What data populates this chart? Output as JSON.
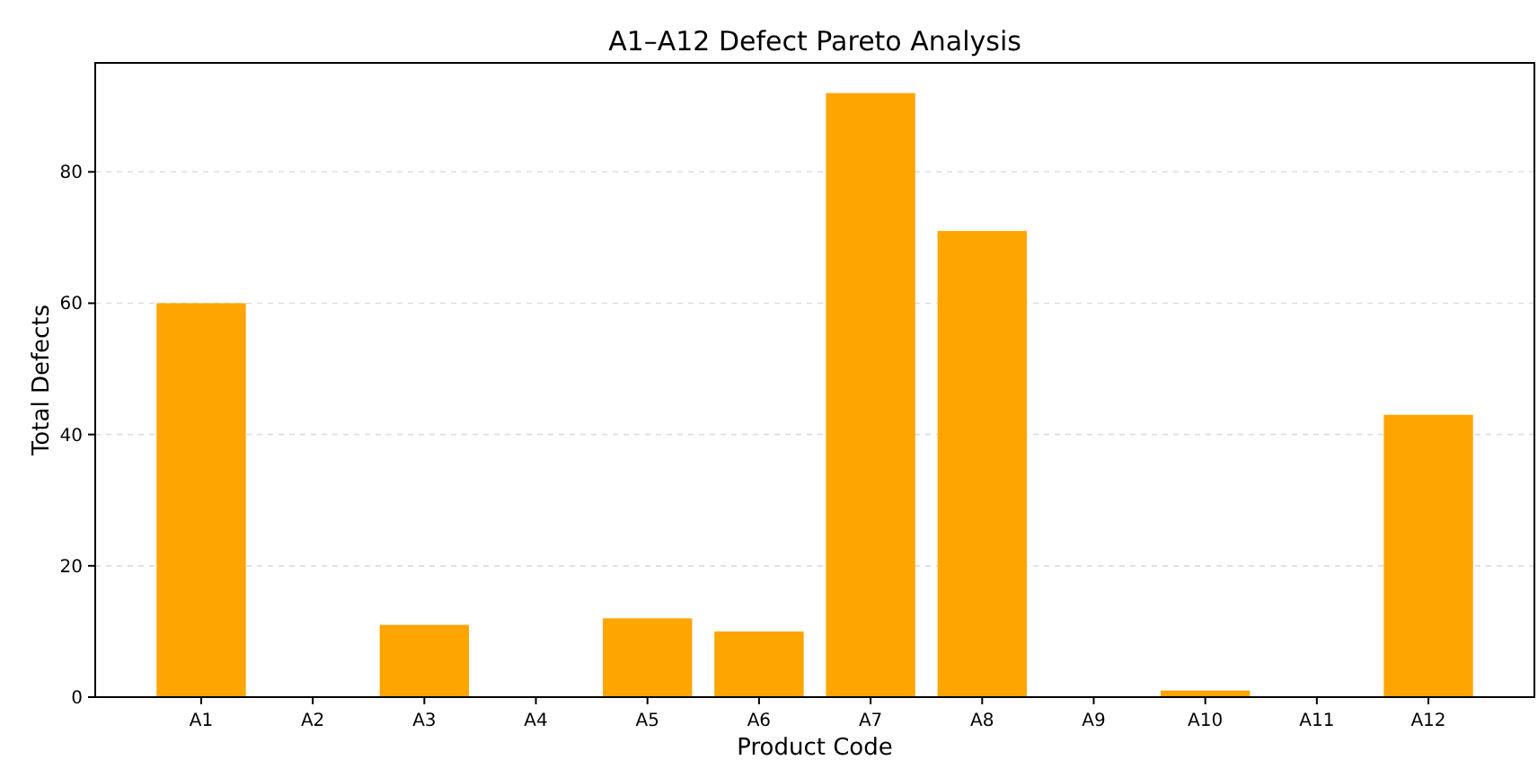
{
  "chart_data": {
    "type": "bar",
    "title": "A1–A12 Defect Pareto Analysis",
    "xlabel": "Product Code",
    "ylabel": "Total Defects",
    "categories": [
      "A1",
      "A2",
      "A3",
      "A4",
      "A5",
      "A6",
      "A7",
      "A8",
      "A9",
      "A10",
      "A11",
      "A12"
    ],
    "values": [
      60,
      0,
      11,
      0,
      12,
      10,
      92,
      71,
      0,
      1,
      0,
      43
    ],
    "color": "#ffa500",
    "ylim": [
      0,
      96.6
    ],
    "yticks": [
      0,
      20,
      40,
      60,
      80
    ],
    "grid": "y"
  }
}
